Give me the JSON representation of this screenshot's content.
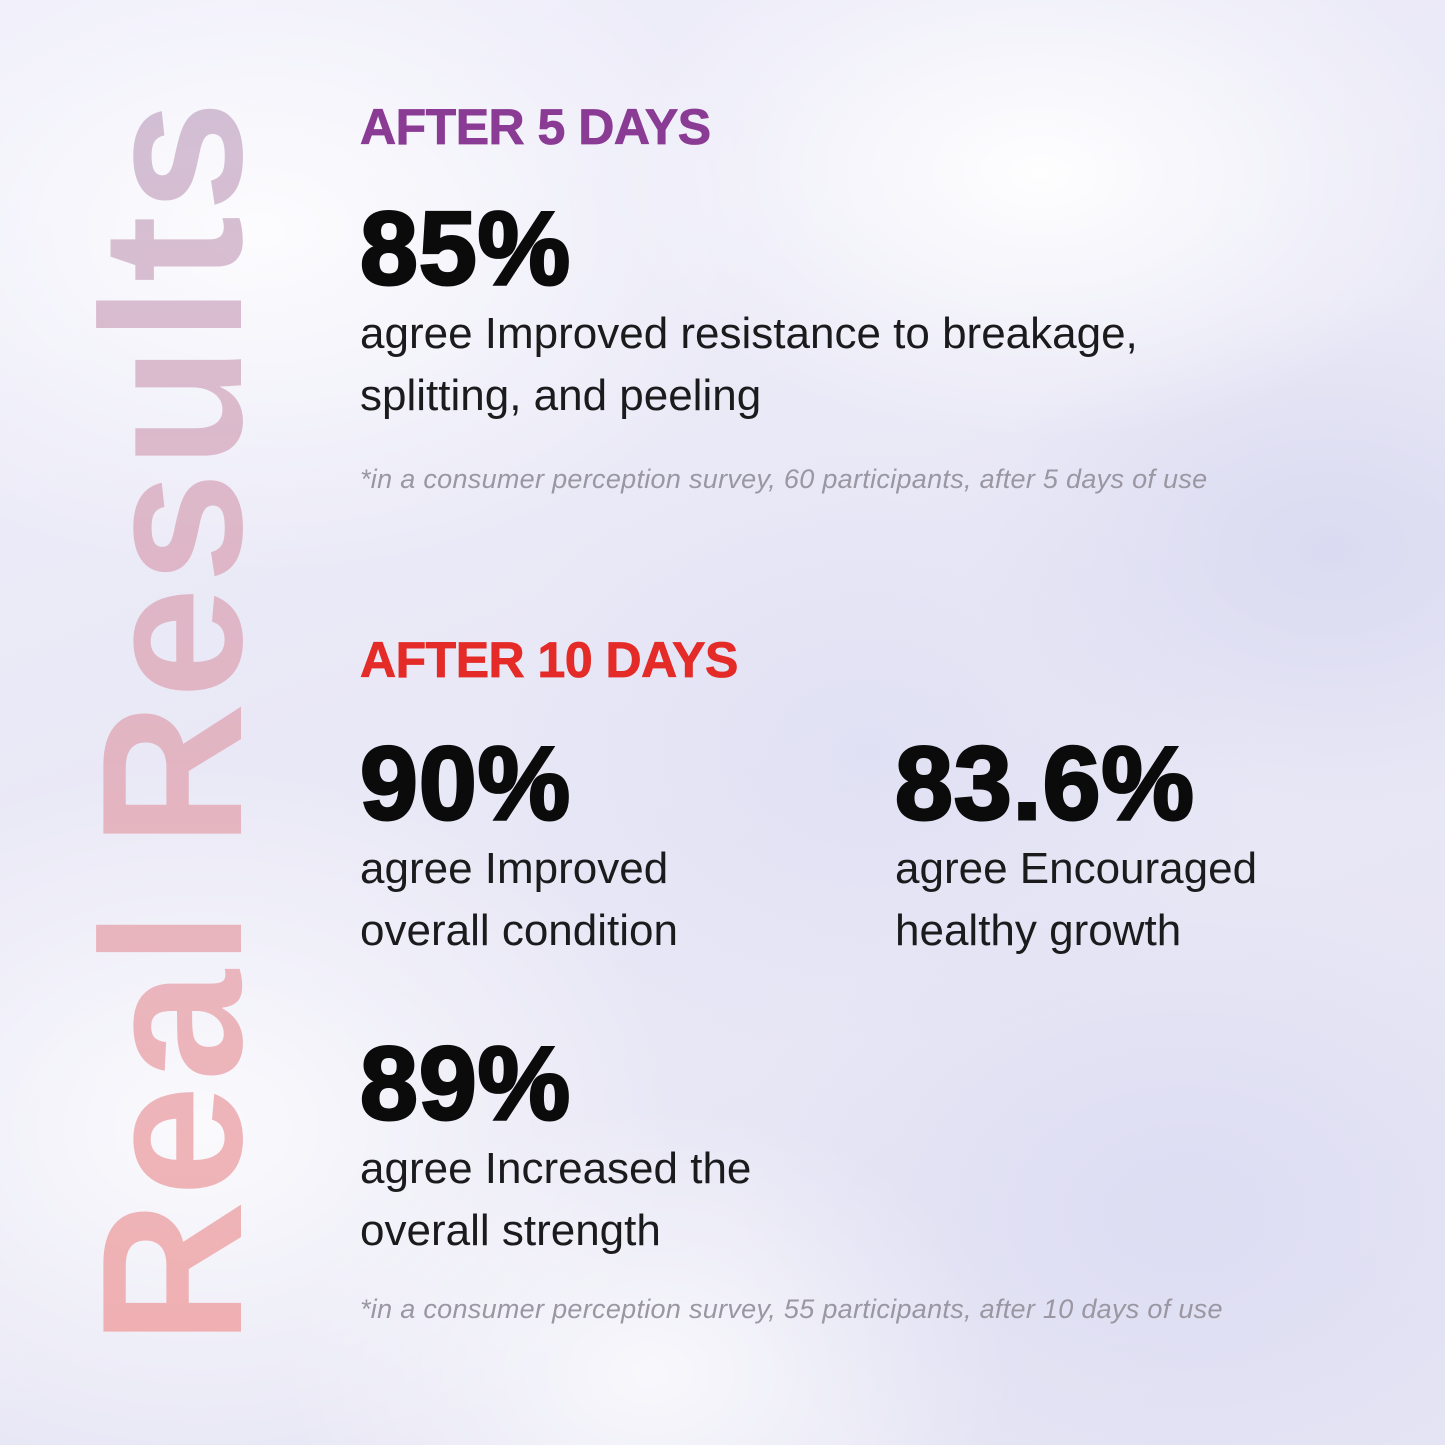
{
  "title": {
    "vertical_text": "Real Results"
  },
  "colors": {
    "accent_purple": "#8a3b94",
    "accent_red": "#e42b28",
    "stat_black": "#0b0b0b",
    "body_text": "#1b1b1d",
    "footnote_gray": "#9a97a2",
    "background_lavender": "#eceaf7",
    "title_gradient": [
      "#f0a1a1",
      "#e7a7b0",
      "#d9abbe",
      "#c9b2cc"
    ]
  },
  "sections": [
    {
      "heading": "AFTER 5 DAYS",
      "heading_color": "#8a3b94",
      "stats": [
        {
          "value": "85%",
          "description_lines": [
            "agree Improved resistance to breakage,",
            "splitting, and peeling"
          ]
        }
      ],
      "footnote": "*in a consumer perception survey, 60 participants, after 5 days of use"
    },
    {
      "heading": "AFTER 10 DAYS",
      "heading_color": "#e42b28",
      "stats": [
        {
          "value": "90%",
          "description_lines": [
            "agree Improved",
            "overall condition"
          ]
        },
        {
          "value": "83.6%",
          "description_lines": [
            "agree Encouraged",
            "healthy growth"
          ]
        },
        {
          "value": "89%",
          "description_lines": [
            "agree Increased the",
            "overall strength"
          ]
        }
      ],
      "footnote": "*in a consumer perception survey, 55 participants, after 10 days of use"
    }
  ]
}
